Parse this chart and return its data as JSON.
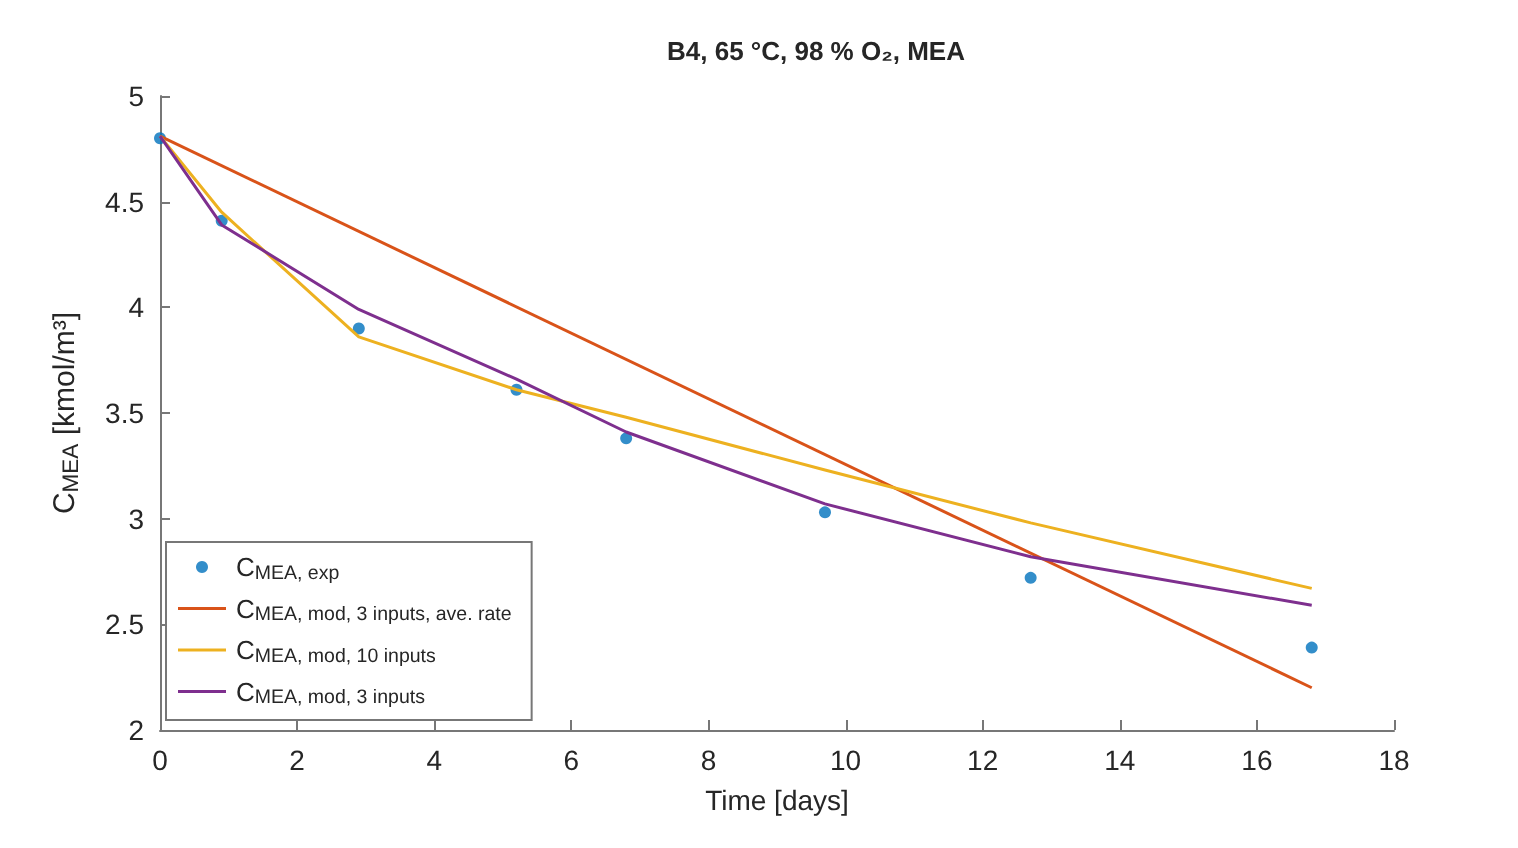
{
  "chart_data": {
    "type": "line",
    "title": "B4, 65 °C, 98 % O₂, MEA",
    "xlabel": "Time [days]",
    "ylabel": "C$_{MEA}$ [kmol/m³]",
    "xlim": [
      0,
      18
    ],
    "xticks": [
      0,
      2,
      4,
      6,
      8,
      10,
      12,
      14,
      16,
      18
    ],
    "ylim": [
      2,
      5
    ],
    "yticks": [
      2,
      2.5,
      3,
      3.5,
      4,
      4.5,
      5
    ],
    "grid": false,
    "legend": "bottom left",
    "line_style": "solid",
    "series": [
      {
        "name": "C$_{MEA, exp}$",
        "type": "scatter",
        "marker": "circle",
        "color": "#0072bd",
        "x": [
          0,
          0.9,
          2.9,
          5.2,
          6.8,
          9.7,
          12.7,
          16.8
        ],
        "values": [
          4.8,
          4.41,
          3.9,
          3.61,
          3.38,
          3.03,
          2.72,
          2.39
        ]
      },
      {
        "name": "C$_{MEA, mod, 3 inputs, ave. rate}$",
        "marker": "none",
        "color": "#d95319",
        "x": [
          0,
          16.8
        ],
        "values": [
          4.81,
          2.2
        ]
      },
      {
        "name": "C$_{MEA, mod, 10 inputs}$",
        "marker": "none",
        "color": "#edb120",
        "x": [
          0,
          0.9,
          2.9,
          5.2,
          6.8,
          9.7,
          12.7,
          16.8
        ],
        "values": [
          4.81,
          4.45,
          3.86,
          3.61,
          3.48,
          3.23,
          2.98,
          2.67
        ]
      },
      {
        "name": "C$_{MEA, mod, 3 inputs}$",
        "marker": "none",
        "color": "#7e2f8e",
        "x": [
          0,
          0.9,
          2.9,
          5.2,
          6.8,
          9.7,
          12.7,
          16.8
        ],
        "values": [
          4.81,
          4.39,
          3.99,
          3.66,
          3.41,
          3.07,
          2.82,
          2.59
        ]
      }
    ]
  }
}
